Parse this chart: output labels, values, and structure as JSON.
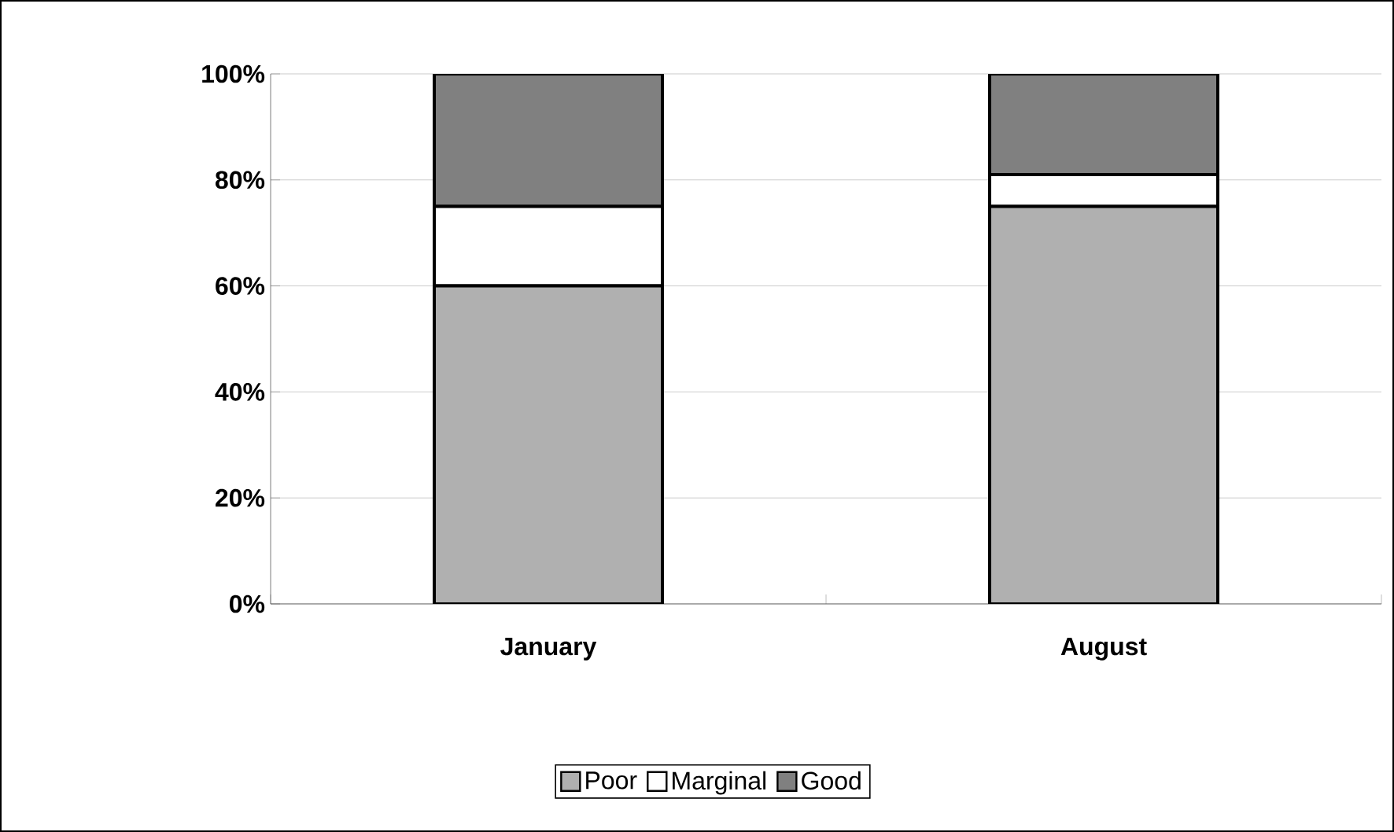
{
  "chart_data": {
    "type": "bar",
    "stacked": true,
    "categories": [
      "January",
      "August"
    ],
    "series": [
      {
        "name": "Poor",
        "color": "#b0b0b0",
        "values": [
          60,
          75
        ]
      },
      {
        "name": "Marginal",
        "color": "#ffffff",
        "values": [
          15,
          6
        ]
      },
      {
        "name": "Good",
        "color": "#808080",
        "values": [
          25,
          19
        ]
      }
    ],
    "ylim": [
      0,
      100
    ],
    "yticks": [
      {
        "value": 0,
        "label": "0%"
      },
      {
        "value": 20,
        "label": "20%"
      },
      {
        "value": 40,
        "label": "40%"
      },
      {
        "value": 60,
        "label": "60%"
      },
      {
        "value": 80,
        "label": "80%"
      },
      {
        "value": 100,
        "label": "100%"
      }
    ],
    "grid": "y",
    "legend": "bottom"
  }
}
